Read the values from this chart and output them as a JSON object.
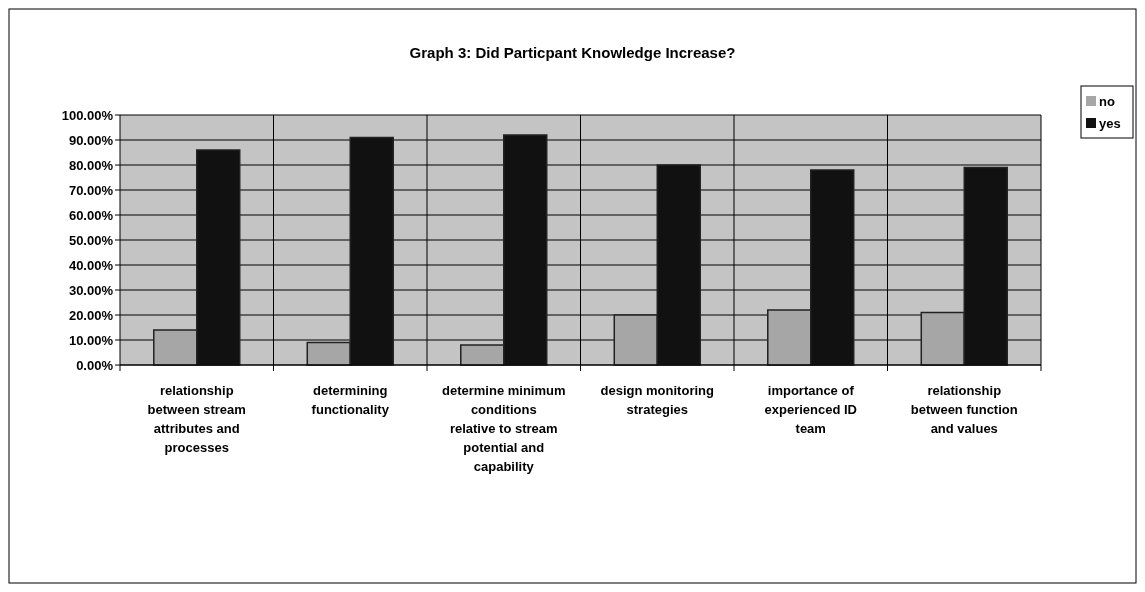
{
  "chart_data": {
    "type": "bar",
    "title": "Graph 3: Did Particpant Knowledge Increase?",
    "categories": [
      "relationship between stream attributes and processes",
      "determining functionality",
      "determine minimum conditions relative to stream potential and capability",
      "design monitoring strategies",
      "importance of experienced ID team",
      "relationship between function and values"
    ],
    "series": [
      {
        "name": "no",
        "color": "#a6a6a6",
        "values": [
          0.14,
          0.09,
          0.08,
          0.2,
          0.22,
          0.21
        ]
      },
      {
        "name": "yes",
        "color": "#111111",
        "values": [
          0.86,
          0.91,
          0.92,
          0.8,
          0.78,
          0.79
        ]
      }
    ],
    "ylim": [
      0,
      1
    ],
    "yticks": [
      {
        "value": 0,
        "label": "0.00%"
      },
      {
        "value": 0.1,
        "label": "10.00%"
      },
      {
        "value": 0.2,
        "label": "20.00%"
      },
      {
        "value": 0.3,
        "label": "30.00%"
      },
      {
        "value": 0.4,
        "label": "40.00%"
      },
      {
        "value": 0.5,
        "label": "50.00%"
      },
      {
        "value": 0.6,
        "label": "60.00%"
      },
      {
        "value": 0.7,
        "label": "70.00%"
      },
      {
        "value": 0.8,
        "label": "80.00%"
      },
      {
        "value": 0.9,
        "label": "90.00%"
      },
      {
        "value": 1,
        "label": "100.00%"
      }
    ],
    "grid": true,
    "legend": "top right"
  }
}
